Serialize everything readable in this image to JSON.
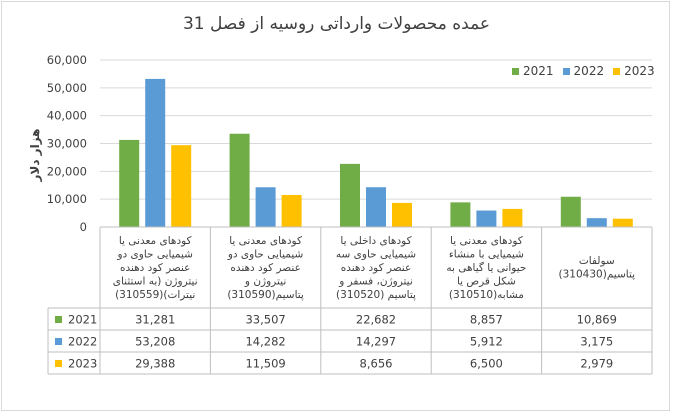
{
  "chart_data": {
    "type": "bar",
    "title": "عمده محصولات وارداتی روسیه از فصل 31",
    "ylabel": "هزار دلار",
    "ylim": [
      0,
      60000
    ],
    "yticks": [
      "0",
      "10,000",
      "20,000",
      "30,000",
      "40,000",
      "50,000",
      "60,000"
    ],
    "legend_position": "top-right",
    "grid": true,
    "categories": [
      [
        "کودهای معدنی یا",
        "شیمیایی حاوی دو",
        "عنصر کود دهنده",
        "نیتروژن (به استثنای",
        "نیترات)(310559)"
      ],
      [
        "کودهای معدنی یا",
        "شیمیایی حاوی دو",
        "عنصر کود دهنده",
        "نیتروژن و",
        "پتاسیم(310590)"
      ],
      [
        "کودهای داخلی یا",
        "شیمیایی حاوی سه",
        "عنصر کود دهنده",
        "نیتروژن، فسفر و",
        "پتاسیم (310520)"
      ],
      [
        "کودهای معدنی یا",
        "شیمیایی با منشاء",
        "حیوانی یا گیاهی به",
        "شکل قرص یا",
        "مشابه(310510)"
      ],
      [
        "سولفات",
        "پتاسیم(310430)"
      ]
    ],
    "series": [
      {
        "name": "2021",
        "color": "#70ad47",
        "values": [
          31281,
          33507,
          22682,
          8857,
          10869
        ],
        "labels": [
          "31,281",
          "33,507",
          "22,682",
          "8,857",
          "10,869"
        ]
      },
      {
        "name": "2022",
        "color": "#5b9bd5",
        "values": [
          53208,
          14282,
          14297,
          5912,
          3175
        ],
        "labels": [
          "53,208",
          "14,282",
          "14,297",
          "5,912",
          "3,175"
        ]
      },
      {
        "name": "2023",
        "color": "#ffc000",
        "values": [
          29388,
          11509,
          8656,
          6500,
          2979
        ],
        "labels": [
          "29,388",
          "11,509",
          "8,656",
          "6,500",
          "2,979"
        ]
      }
    ]
  }
}
